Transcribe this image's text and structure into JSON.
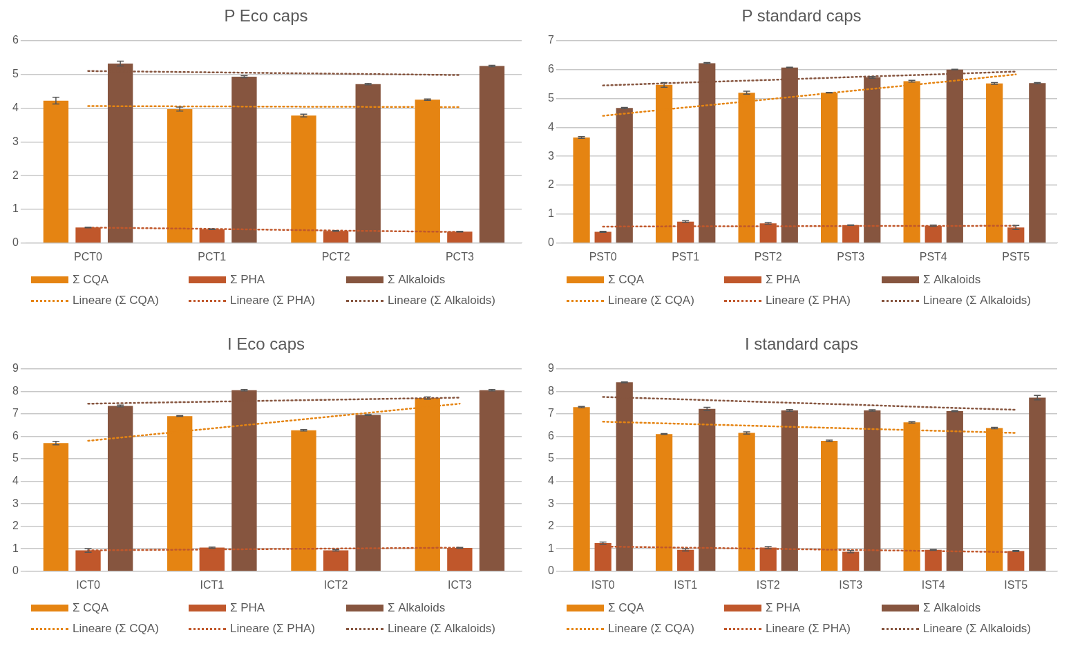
{
  "chart_data": [
    {
      "type": "bar",
      "title": "P Eco caps",
      "categories": [
        "PCT0",
        "PCT1",
        "PCT2",
        "PCT3"
      ],
      "ylim": [
        0,
        6
      ],
      "yticks": [
        0,
        1,
        2,
        3,
        4,
        5,
        6
      ],
      "grid": "y",
      "legend": "bottom",
      "marker": "none",
      "line_style": "dotted",
      "series": [
        {
          "name": "Σ CQA",
          "color": "#e58412",
          "values": [
            4.22,
            3.97,
            3.78,
            4.25
          ],
          "errors": [
            0.1,
            0.06,
            0.04,
            0.02
          ]
        },
        {
          "name": "Σ PHA",
          "color": "#c0572b",
          "values": [
            0.46,
            0.41,
            0.36,
            0.34
          ],
          "errors": [
            0.01,
            0.01,
            0.01,
            0.01
          ]
        },
        {
          "name": "Σ Alkaloids",
          "color": "#86553f",
          "values": [
            5.32,
            4.93,
            4.71,
            5.25
          ],
          "errors": [
            0.07,
            0.03,
            0.02,
            0.02
          ]
        },
        {
          "name": "Lineare (Σ CQA)",
          "type": "line",
          "color": "#e58412",
          "values": [
            4.06,
            4.05,
            4.04,
            4.03
          ]
        },
        {
          "name": "Lineare (Σ PHA)",
          "type": "line",
          "color": "#c0572b",
          "values": [
            0.46,
            0.42,
            0.37,
            0.33
          ]
        },
        {
          "name": "Lineare (Σ Alkaloids)",
          "type": "line",
          "color": "#86553f",
          "values": [
            5.1,
            5.06,
            5.02,
            4.98
          ]
        }
      ]
    },
    {
      "type": "bar",
      "title": "P standard caps",
      "categories": [
        "PST0",
        "PST1",
        "PST2",
        "PST3",
        "PST4",
        "PST5"
      ],
      "ylim": [
        0,
        7
      ],
      "yticks": [
        0,
        1,
        2,
        3,
        4,
        5,
        6,
        7
      ],
      "grid": "y",
      "legend": "bottom",
      "marker": "none",
      "line_style": "dotted",
      "series": [
        {
          "name": "Σ CQA",
          "color": "#e58412",
          "values": [
            3.65,
            5.47,
            5.2,
            5.2,
            5.6,
            5.52
          ],
          "errors": [
            0.03,
            0.08,
            0.05,
            0.01,
            0.03,
            0.03
          ]
        },
        {
          "name": "Σ PHA",
          "color": "#c0572b",
          "values": [
            0.39,
            0.74,
            0.68,
            0.62,
            0.6,
            0.54
          ],
          "errors": [
            0.02,
            0.03,
            0.03,
            0.01,
            0.02,
            0.07
          ]
        },
        {
          "name": "Σ Alkaloids",
          "color": "#86553f",
          "values": [
            4.67,
            6.22,
            6.07,
            5.73,
            6.0,
            5.53
          ],
          "errors": [
            0.02,
            0.02,
            0.01,
            0.03,
            0.01,
            0.02
          ]
        },
        {
          "name": "Lineare (Σ CQA)",
          "type": "line",
          "color": "#e58412",
          "values": [
            4.4,
            4.69,
            4.97,
            5.26,
            5.54,
            5.83
          ]
        },
        {
          "name": "Lineare (Σ PHA)",
          "type": "line",
          "color": "#c0572b",
          "values": [
            0.57,
            0.58,
            0.58,
            0.59,
            0.59,
            0.6
          ]
        },
        {
          "name": "Lineare (Σ Alkaloids)",
          "type": "line",
          "color": "#86553f",
          "values": [
            5.45,
            5.55,
            5.64,
            5.74,
            5.83,
            5.93
          ]
        }
      ]
    },
    {
      "type": "bar",
      "title": "I Eco caps",
      "categories": [
        "ICT0",
        "ICT1",
        "ICT2",
        "ICT3"
      ],
      "ylim": [
        0,
        9
      ],
      "yticks": [
        0,
        1,
        2,
        3,
        4,
        5,
        6,
        7,
        8,
        9
      ],
      "grid": "y",
      "legend": "bottom",
      "marker": "none",
      "line_style": "dotted",
      "series": [
        {
          "name": "Σ CQA",
          "color": "#e58412",
          "values": [
            5.7,
            6.9,
            6.27,
            7.7
          ],
          "errors": [
            0.08,
            0.02,
            0.03,
            0.05
          ]
        },
        {
          "name": "Σ PHA",
          "color": "#c0572b",
          "values": [
            0.93,
            1.05,
            0.93,
            1.04
          ],
          "errors": [
            0.08,
            0.03,
            0.03,
            0.02
          ]
        },
        {
          "name": "Σ Alkaloids",
          "color": "#86553f",
          "values": [
            7.35,
            8.05,
            6.95,
            8.05
          ],
          "errors": [
            0.04,
            0.03,
            0.02,
            0.03
          ]
        },
        {
          "name": "Lineare (Σ CQA)",
          "type": "line",
          "color": "#e58412",
          "values": [
            5.8,
            6.35,
            6.9,
            7.45
          ]
        },
        {
          "name": "Lineare (Σ PHA)",
          "type": "line",
          "color": "#c0572b",
          "values": [
            0.93,
            0.97,
            1.01,
            1.05
          ]
        },
        {
          "name": "Lineare (Σ Alkaloids)",
          "type": "line",
          "color": "#86553f",
          "values": [
            7.45,
            7.54,
            7.63,
            7.72
          ]
        }
      ]
    },
    {
      "type": "bar",
      "title": "I standard caps",
      "categories": [
        "IST0",
        "IST1",
        "IST2",
        "IST3",
        "IST4",
        "IST5"
      ],
      "ylim": [
        0,
        9
      ],
      "yticks": [
        0,
        1,
        2,
        3,
        4,
        5,
        6,
        7,
        8,
        9
      ],
      "grid": "y",
      "legend": "bottom",
      "marker": "none",
      "line_style": "dotted",
      "series": [
        {
          "name": "Σ CQA",
          "color": "#e58412",
          "values": [
            7.3,
            6.1,
            6.15,
            5.8,
            6.62,
            6.37
          ],
          "errors": [
            0.03,
            0.02,
            0.05,
            0.03,
            0.03,
            0.03
          ]
        },
        {
          "name": "Σ PHA",
          "color": "#c0572b",
          "values": [
            1.25,
            0.95,
            1.05,
            0.87,
            0.95,
            0.9
          ],
          "errors": [
            0.05,
            0.05,
            0.05,
            0.05,
            0.02,
            0.02
          ]
        },
        {
          "name": "Σ Alkaloids",
          "color": "#86553f",
          "values": [
            8.4,
            7.22,
            7.15,
            7.15,
            7.12,
            7.72
          ],
          "errors": [
            0.02,
            0.07,
            0.04,
            0.03,
            0.02,
            0.1
          ]
        },
        {
          "name": "Lineare (Σ CQA)",
          "type": "line",
          "color": "#e58412",
          "values": [
            6.65,
            6.55,
            6.45,
            6.35,
            6.25,
            6.15
          ]
        },
        {
          "name": "Lineare (Σ PHA)",
          "type": "line",
          "color": "#c0572b",
          "values": [
            1.1,
            1.05,
            1.0,
            0.95,
            0.9,
            0.85
          ]
        },
        {
          "name": "Lineare (Σ Alkaloids)",
          "type": "line",
          "color": "#86553f",
          "values": [
            7.75,
            7.64,
            7.52,
            7.41,
            7.29,
            7.18
          ]
        }
      ]
    }
  ]
}
